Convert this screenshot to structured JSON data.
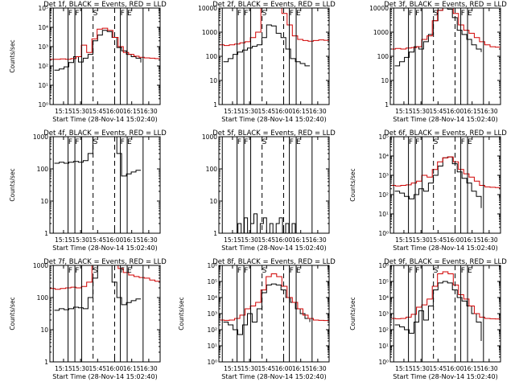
{
  "figure": {
    "background": "#ffffff"
  },
  "chart_data": [
    {
      "type": "line",
      "title": "Det 1f, BLACK = Events, RED = LLD",
      "xlabel": "Start Time (28-Nov-14 15:02:40)",
      "ylabel": "Counts/sec",
      "yscale": "log",
      "ylim": [
        1,
        100000
      ],
      "yticks": [
        "10⁰",
        "10¹",
        "10²",
        "10³",
        "10⁴",
        "10⁵"
      ],
      "xlim": [
        "15:03",
        "16:40"
      ],
      "xticks": [
        "15:15",
        "15:30",
        "15:45",
        "16:00",
        "16:15",
        "16:30"
      ],
      "markers": {
        "solid": [
          "15:06",
          "15:19",
          "15:25",
          "15:31",
          "16:05",
          "16:11",
          "16:25"
        ],
        "dashed": [
          "15:41",
          "16:00"
        ]
      },
      "marker_labels": [
        {
          "x": "15:21",
          "text": "F"
        },
        {
          "x": "15:27",
          "text": "F"
        },
        {
          "x": "15:43",
          "text": "S"
        },
        {
          "x": "16:07",
          "text": "F"
        },
        {
          "x": "16:13",
          "text": "E"
        }
      ],
      "series": [
        {
          "color": "#000000",
          "from": "15:07",
          "to": "16:23",
          "values": [
            60,
            70,
            90,
            150,
            300,
            160,
            250,
            400,
            2000,
            4000,
            7000,
            6000,
            3000,
            900,
            600,
            400,
            300,
            250,
            150
          ]
        },
        {
          "color": "#d00000",
          "from": "15:03",
          "to": "16:40",
          "values": [
            220,
            220,
            230,
            220,
            240,
            300,
            1200,
            500,
            2500,
            8000,
            9000,
            7000,
            3000,
            1000,
            500,
            400,
            320,
            280,
            260,
            250,
            240,
            220
          ]
        }
      ]
    },
    {
      "type": "line",
      "title": "Det 2f, BLACK = Events, RED = LLD",
      "xlabel": "Start Time (28-Nov-14 15:02:40)",
      "ylabel": "",
      "yscale": "log",
      "ylim": [
        1,
        10000
      ],
      "yticks": [
        "1",
        "10",
        "100",
        "1000",
        "10000"
      ],
      "xlim": [
        "15:03",
        "16:40"
      ],
      "xticks": [
        "15:15",
        "15:30",
        "15:45",
        "16:00",
        "16:15",
        "16:30"
      ],
      "markers": {
        "solid": [
          "15:06",
          "15:19",
          "15:25",
          "15:31",
          "16:05",
          "16:11",
          "16:25"
        ],
        "dashed": [
          "15:41",
          "16:00"
        ]
      },
      "marker_labels": [
        {
          "x": "15:21",
          "text": "F"
        },
        {
          "x": "15:27",
          "text": "F"
        },
        {
          "x": "15:43",
          "text": "S"
        },
        {
          "x": "16:07",
          "text": "F"
        },
        {
          "x": "16:13",
          "text": "E"
        }
      ],
      "series": [
        {
          "color": "#000000",
          "from": "15:07",
          "to": "16:23",
          "values": [
            60,
            80,
            120,
            150,
            180,
            220,
            260,
            300,
            600,
            2000,
            1800,
            900,
            600,
            200,
            80,
            60,
            50,
            40,
            40
          ]
        },
        {
          "color": "#d00000",
          "from": "15:03",
          "to": "16:40",
          "values": [
            300,
            280,
            300,
            320,
            360,
            400,
            600,
            1000,
            10000,
            10000,
            10000,
            10000,
            6000,
            2000,
            700,
            500,
            450,
            420,
            450,
            480,
            460,
            440
          ]
        }
      ]
    },
    {
      "type": "line",
      "title": "Det 3f, BLACK = Events, RED = LLD",
      "xlabel": "Start Time (28-Nov-14 15:02:40)",
      "ylabel": "",
      "yscale": "log",
      "ylim": [
        1,
        10000
      ],
      "yticks": [
        "1",
        "10",
        "100",
        "1000",
        "10000"
      ],
      "xlim": [
        "15:03",
        "16:40"
      ],
      "xticks": [
        "15:15",
        "15:30",
        "15:45",
        "16:00",
        "16:15",
        "16:30"
      ],
      "markers": {
        "solid": [
          "15:06",
          "15:19",
          "15:25",
          "15:31",
          "16:05",
          "16:11",
          "16:25"
        ],
        "dashed": [
          "15:41",
          "16:00"
        ]
      },
      "marker_labels": [
        {
          "x": "15:21",
          "text": "F"
        },
        {
          "x": "15:27",
          "text": "F"
        },
        {
          "x": "15:43",
          "text": "S"
        },
        {
          "x": "16:07",
          "text": "F"
        },
        {
          "x": "16:13",
          "text": "E"
        }
      ],
      "series": [
        {
          "color": "#000000",
          "from": "15:07",
          "to": "16:23",
          "values": [
            40,
            60,
            90,
            150,
            250,
            200,
            400,
            800,
            3000,
            8000,
            10000,
            9000,
            4000,
            1200,
            800,
            500,
            300,
            200,
            150
          ]
        },
        {
          "color": "#d00000",
          "from": "15:03",
          "to": "16:40",
          "values": [
            200,
            210,
            200,
            220,
            230,
            250,
            500,
            700,
            3000,
            8000,
            10000,
            10000,
            6000,
            2000,
            1200,
            900,
            600,
            400,
            300,
            250,
            240,
            230
          ]
        }
      ]
    },
    {
      "type": "line",
      "title": "Det 4f, BLACK = Events, RED = LLD",
      "xlabel": "Start Time (28-Nov-14 15:02:40)",
      "ylabel": "Counts/sec",
      "yscale": "log",
      "ylim": [
        1,
        1000
      ],
      "yticks": [
        "1",
        "10",
        "100",
        "1000"
      ],
      "xlim": [
        "15:03",
        "16:40"
      ],
      "xticks": [
        "15:15",
        "15:30",
        "15:45",
        "16:00",
        "16:15",
        "16:30"
      ],
      "markers": {
        "solid": [
          "15:06",
          "15:19",
          "15:25",
          "15:31",
          "16:05",
          "16:11",
          "16:25"
        ],
        "dashed": [
          "15:41",
          "16:00"
        ]
      },
      "marker_labels": [
        {
          "x": "15:21",
          "text": "F"
        },
        {
          "x": "15:27",
          "text": "F"
        },
        {
          "x": "15:43",
          "text": "S"
        },
        {
          "x": "16:07",
          "text": "F"
        },
        {
          "x": "16:13",
          "text": "E"
        }
      ],
      "series": [
        {
          "color": "#000000",
          "from": "15:07",
          "to": "16:23",
          "values": [
            150,
            160,
            150,
            160,
            170,
            160,
            180,
            300,
            1000,
            1000,
            1000,
            1000,
            1000,
            300,
            60,
            70,
            80,
            90,
            90
          ]
        },
        {
          "color": "#d00000",
          "from": "15:03",
          "to": "16:40",
          "values": [
            1000,
            1000,
            1000,
            1000,
            1000,
            1000,
            1000,
            1000,
            1000,
            1000,
            1000,
            1000,
            1000,
            1000,
            1000,
            1000,
            1000,
            1000,
            1000,
            1000,
            1000,
            1000
          ]
        }
      ]
    },
    {
      "type": "line",
      "title": "Det 5f, BLACK = Events, RED = LLD",
      "xlabel": "Start Time (28-Nov-14 15:02:40)",
      "ylabel": "",
      "yscale": "log",
      "ylim": [
        1,
        1000
      ],
      "yticks": [
        "1",
        "10",
        "100",
        "1000"
      ],
      "xlim": [
        "15:03",
        "16:40"
      ],
      "xticks": [
        "15:15",
        "15:30",
        "15:45",
        "16:00",
        "16:15",
        "16:30"
      ],
      "markers": {
        "solid": [
          "15:06",
          "15:19",
          "15:25",
          "15:31",
          "16:05",
          "16:11",
          "16:25"
        ],
        "dashed": [
          "15:41",
          "16:00"
        ]
      },
      "marker_labels": [
        {
          "x": "15:21",
          "text": "F"
        },
        {
          "x": "15:27",
          "text": "F"
        },
        {
          "x": "15:43",
          "text": "S"
        },
        {
          "x": "16:07",
          "text": "F"
        },
        {
          "x": "16:13",
          "text": "E"
        }
      ],
      "series": [
        {
          "color": "#000000",
          "from": "15:17",
          "to": "16:13",
          "values": [
            1,
            2,
            1,
            3,
            1,
            2,
            4,
            1,
            2,
            3,
            1,
            2,
            1,
            2,
            3,
            1,
            2,
            1,
            2,
            1,
            1
          ]
        }
      ]
    },
    {
      "type": "line",
      "title": "Det 6f, BLACK = Events, RED = LLD",
      "xlabel": "Start Time (28-Nov-14 15:02:40)",
      "ylabel": "Counts/sec",
      "yscale": "log",
      "ylim": [
        1,
        100000
      ],
      "yticks": [
        "10⁰",
        "10¹",
        "10²",
        "10³",
        "10⁴",
        "10⁵"
      ],
      "xlim": [
        "15:03",
        "16:40"
      ],
      "xticks": [
        "15:15",
        "15:30",
        "15:45",
        "16:00",
        "16:15",
        "16:30"
      ],
      "markers": {
        "solid": [
          "15:06",
          "15:19",
          "15:25",
          "15:31",
          "16:05",
          "16:11",
          "16:25"
        ],
        "dashed": [
          "15:41",
          "16:00"
        ]
      },
      "marker_labels": [
        {
          "x": "15:21",
          "text": "F"
        },
        {
          "x": "15:27",
          "text": "F"
        },
        {
          "x": "15:43",
          "text": "S"
        },
        {
          "x": "16:07",
          "text": "F"
        },
        {
          "x": "16:13",
          "text": "E"
        }
      ],
      "series": [
        {
          "color": "#000000",
          "from": "15:07",
          "to": "16:23",
          "values": [
            150,
            120,
            80,
            60,
            100,
            200,
            150,
            400,
            1000,
            3000,
            8000,
            9000,
            4000,
            1500,
            700,
            400,
            150,
            80,
            20
          ]
        },
        {
          "color": "#d00000",
          "from": "15:03",
          "to": "16:40",
          "values": [
            300,
            280,
            300,
            320,
            400,
            500,
            1000,
            800,
            2000,
            5000,
            8000,
            9000,
            5000,
            2000,
            1200,
            800,
            500,
            300,
            250,
            240,
            230,
            220
          ]
        }
      ]
    },
    {
      "type": "line",
      "title": "Det 7f, BLACK = Events, RED = LLD",
      "xlabel": "Start Time (28-Nov-14 15:02:40)",
      "ylabel": "Counts/sec",
      "yscale": "log",
      "ylim": [
        1,
        1000
      ],
      "yticks": [
        "1",
        "10",
        "100",
        "1000"
      ],
      "xlim": [
        "15:03",
        "16:40"
      ],
      "xticks": [
        "15:15",
        "15:30",
        "15:45",
        "16:00",
        "16:15",
        "16:30"
      ],
      "markers": {
        "solid": [
          "15:06",
          "15:19",
          "15:25",
          "15:31",
          "16:05",
          "16:11",
          "16:25"
        ],
        "dashed": [
          "15:41",
          "16:00"
        ]
      },
      "marker_labels": [
        {
          "x": "15:21",
          "text": "F"
        },
        {
          "x": "15:27",
          "text": "F"
        },
        {
          "x": "15:43",
          "text": "S"
        },
        {
          "x": "16:07",
          "text": "F"
        },
        {
          "x": "16:13",
          "text": "E"
        }
      ],
      "series": [
        {
          "color": "#000000",
          "from": "15:07",
          "to": "16:23",
          "values": [
            40,
            45,
            42,
            45,
            50,
            48,
            45,
            100,
            400,
            1000,
            1000,
            1000,
            300,
            100,
            60,
            70,
            80,
            90,
            90
          ]
        },
        {
          "color": "#d00000",
          "from": "15:03",
          "to": "16:40",
          "values": [
            190,
            180,
            190,
            200,
            210,
            200,
            220,
            300,
            1000,
            1000,
            1000,
            1000,
            1000,
            800,
            600,
            500,
            450,
            420,
            400,
            350,
            320,
            300
          ]
        }
      ]
    },
    {
      "type": "line",
      "title": "Det 8f, BLACK = Events, RED = LLD",
      "xlabel": "Start Time (28-Nov-14 15:02:40)",
      "ylabel": "Counts/sec",
      "yscale": "log",
      "ylim": [
        1,
        1000000
      ],
      "yticks": [
        "10⁰",
        "10¹",
        "10²",
        "10³",
        "10⁴",
        "10⁵",
        "10⁶"
      ],
      "xlim": [
        "15:03",
        "16:40"
      ],
      "xticks": [
        "15:15",
        "15:30",
        "15:45",
        "16:00",
        "16:15",
        "16:30"
      ],
      "markers": {
        "solid": [
          "15:06",
          "15:19",
          "15:25",
          "15:31",
          "16:05",
          "16:11",
          "16:25"
        ],
        "dashed": [
          "15:41",
          "16:00"
        ]
      },
      "marker_labels": [
        {
          "x": "15:21",
          "text": "F"
        },
        {
          "x": "15:27",
          "text": "F"
        },
        {
          "x": "15:43",
          "text": "S"
        },
        {
          "x": "16:07",
          "text": "F"
        },
        {
          "x": "16:13",
          "text": "E"
        }
      ],
      "series": [
        {
          "color": "#000000",
          "from": "15:07",
          "to": "16:23",
          "values": [
            300,
            200,
            100,
            50,
            200,
            1000,
            300,
            2000,
            20000,
            60000,
            70000,
            60000,
            30000,
            10000,
            5000,
            2000,
            1000,
            500,
            300
          ]
        },
        {
          "color": "#d00000",
          "from": "15:03",
          "to": "16:40",
          "values": [
            400,
            380,
            400,
            500,
            800,
            2000,
            3000,
            5000,
            30000,
            200000,
            300000,
            200000,
            50000,
            10000,
            5000,
            2000,
            800,
            500,
            400,
            380,
            370,
            360
          ]
        }
      ]
    },
    {
      "type": "line",
      "title": "Det 9f, BLACK = Events, RED = LLD",
      "xlabel": "Start Time (28-Nov-14 15:02:40)",
      "ylabel": "Counts/sec",
      "yscale": "log",
      "ylim": [
        1,
        1000000
      ],
      "yticks": [
        "10⁰",
        "10¹",
        "10²",
        "10³",
        "10⁴",
        "10⁵",
        "10⁶"
      ],
      "xlim": [
        "15:03",
        "16:40"
      ],
      "xticks": [
        "15:15",
        "15:30",
        "15:45",
        "16:00",
        "16:15",
        "16:30"
      ],
      "markers": {
        "solid": [
          "15:06",
          "15:19",
          "15:25",
          "15:31",
          "16:05",
          "16:11",
          "16:25"
        ],
        "dashed": [
          "15:41",
          "16:00"
        ]
      },
      "marker_labels": [
        {
          "x": "15:21",
          "text": "F"
        },
        {
          "x": "15:27",
          "text": "F"
        },
        {
          "x": "15:43",
          "text": "S"
        },
        {
          "x": "16:07",
          "text": "F"
        },
        {
          "x": "16:13",
          "text": "E"
        }
      ],
      "series": [
        {
          "color": "#000000",
          "from": "15:07",
          "to": "16:23",
          "values": [
            200,
            150,
            100,
            60,
            300,
            1500,
            400,
            3000,
            30000,
            80000,
            100000,
            80000,
            30000,
            10000,
            6000,
            3000,
            1000,
            300,
            20
          ]
        },
        {
          "color": "#d00000",
          "from": "15:03",
          "to": "16:40",
          "values": [
            500,
            480,
            500,
            600,
            900,
            2500,
            3500,
            8000,
            50000,
            300000,
            400000,
            300000,
            60000,
            15000,
            8000,
            3000,
            1000,
            600,
            500,
            480,
            470,
            460
          ]
        }
      ]
    }
  ]
}
